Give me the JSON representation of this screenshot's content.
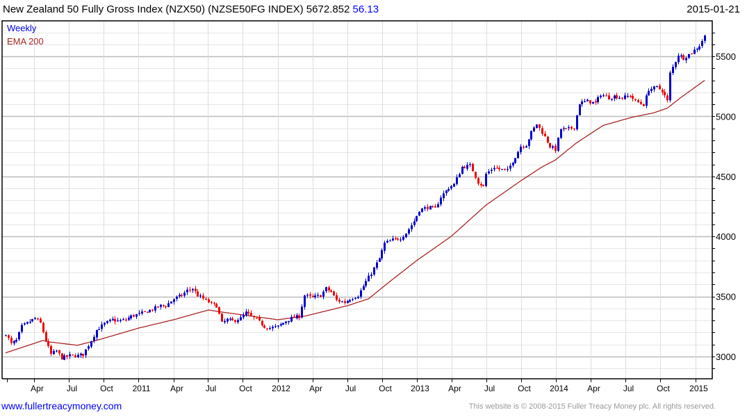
{
  "header": {
    "title": "New Zealand 50 Fully Gross Index (NZX50) (NZSE50FG INDEX) 5672.852",
    "change": "56.13",
    "date": "2015-01-21"
  },
  "footer": {
    "site": "www.fullertreacymoney.com",
    "copyright": "This website is © 2008-2015 Fuller Treacy Money plc. All rights reserved."
  },
  "chart_data": {
    "type": "candlestick",
    "title": "New Zealand 50 Fully Gross Index (NZX50) (NZSE50FG INDEX)",
    "legend": [
      {
        "label": "Weekly",
        "color": "#0000dd"
      },
      {
        "label": "EMA 200",
        "color": "#aa2222"
      }
    ],
    "legend_placement": "top-left",
    "up_color": "#0000cc",
    "down_color": "#ee0000",
    "ylim": [
      2814,
      5796
    ],
    "y_ticks": [
      3000,
      3500,
      4000,
      4500,
      5000,
      5500
    ],
    "y_minor_step": 100,
    "weeks_total": 263,
    "x_ticks": [
      {
        "label": "Apr",
        "week": 10.7
      },
      {
        "label": "Jul",
        "week": 23.7
      },
      {
        "label": "Oct",
        "week": 36.8
      },
      {
        "label": "2011",
        "week": 49.8
      },
      {
        "label": "Apr",
        "week": 62.9
      },
      {
        "label": "Jul",
        "week": 75.9
      },
      {
        "label": "Oct",
        "week": 88.9
      },
      {
        "label": "2012",
        "week": 102.0
      },
      {
        "label": "Apr",
        "week": 115.0
      },
      {
        "label": "Jul",
        "week": 128.1
      },
      {
        "label": "Oct",
        "week": 141.1
      },
      {
        "label": "2013",
        "week": 154.1
      },
      {
        "label": "Apr",
        "week": 167.2
      },
      {
        "label": "Jul",
        "week": 180.2
      },
      {
        "label": "Oct",
        "week": 193.3
      },
      {
        "label": "2014",
        "week": 206.3
      },
      {
        "label": "Apr",
        "week": 219.3
      },
      {
        "label": "Jul",
        "week": 232.4
      },
      {
        "label": "Oct",
        "week": 245.4
      },
      {
        "label": "2015",
        "week": 258.5
      }
    ],
    "weekly_close_waypoints": [
      [
        0,
        3191
      ],
      [
        2,
        3104
      ],
      [
        4,
        3133
      ],
      [
        6,
        3249
      ],
      [
        8,
        3277
      ],
      [
        11,
        3318
      ],
      [
        13,
        3277
      ],
      [
        15,
        3133
      ],
      [
        17,
        3017
      ],
      [
        19,
        3046
      ],
      [
        21,
        2988
      ],
      [
        24,
        3006
      ],
      [
        27,
        3006
      ],
      [
        29,
        3017
      ],
      [
        32,
        3133
      ],
      [
        34,
        3220
      ],
      [
        37,
        3272
      ],
      [
        40,
        3306
      ],
      [
        42,
        3295
      ],
      [
        45,
        3306
      ],
      [
        47,
        3335
      ],
      [
        50,
        3353
      ],
      [
        53,
        3376
      ],
      [
        55,
        3393
      ],
      [
        58,
        3422
      ],
      [
        60,
        3422
      ],
      [
        63,
        3480
      ],
      [
        66,
        3509
      ],
      [
        68,
        3549
      ],
      [
        70,
        3566
      ],
      [
        72,
        3509
      ],
      [
        75,
        3468
      ],
      [
        77,
        3439
      ],
      [
        79,
        3422
      ],
      [
        81,
        3277
      ],
      [
        83,
        3306
      ],
      [
        85,
        3295
      ],
      [
        88,
        3318
      ],
      [
        90,
        3364
      ],
      [
        92,
        3335
      ],
      [
        94,
        3306
      ],
      [
        97,
        3249
      ],
      [
        99,
        3237
      ],
      [
        102,
        3249
      ],
      [
        105,
        3295
      ],
      [
        107,
        3318
      ],
      [
        110,
        3335
      ],
      [
        112,
        3509
      ],
      [
        115,
        3491
      ],
      [
        118,
        3509
      ],
      [
        120,
        3566
      ],
      [
        122,
        3538
      ],
      [
        124,
        3468
      ],
      [
        127,
        3451
      ],
      [
        129,
        3480
      ],
      [
        132,
        3509
      ],
      [
        135,
        3624
      ],
      [
        137,
        3694
      ],
      [
        140,
        3815
      ],
      [
        142,
        3942
      ],
      [
        145,
        3971
      ],
      [
        148,
        3988
      ],
      [
        150,
        4029
      ],
      [
        153,
        4127
      ],
      [
        155,
        4220
      ],
      [
        158,
        4243
      ],
      [
        161,
        4231
      ],
      [
        163,
        4329
      ],
      [
        166,
        4405
      ],
      [
        168,
        4434
      ],
      [
        171,
        4578
      ],
      [
        174,
        4590
      ],
      [
        175,
        4549
      ],
      [
        177,
        4451
      ],
      [
        179,
        4416
      ],
      [
        180,
        4520
      ],
      [
        183,
        4578
      ],
      [
        185,
        4561
      ],
      [
        188,
        4549
      ],
      [
        191,
        4665
      ],
      [
        193,
        4751
      ],
      [
        195,
        4763
      ],
      [
        197,
        4867
      ],
      [
        199,
        4936
      ],
      [
        201,
        4867
      ],
      [
        204,
        4751
      ],
      [
        206,
        4723
      ],
      [
        208,
        4896
      ],
      [
        210,
        4890
      ],
      [
        213,
        4908
      ],
      [
        215,
        5110
      ],
      [
        218,
        5127
      ],
      [
        221,
        5110
      ],
      [
        223,
        5185
      ],
      [
        226,
        5156
      ],
      [
        228,
        5168
      ],
      [
        231,
        5156
      ],
      [
        234,
        5173
      ],
      [
        236,
        5127
      ],
      [
        239,
        5098
      ],
      [
        241,
        5225
      ],
      [
        244,
        5243
      ],
      [
        246,
        5214
      ],
      [
        248,
        5127
      ],
      [
        249,
        5358
      ],
      [
        252,
        5514
      ],
      [
        254,
        5486
      ],
      [
        257,
        5532
      ],
      [
        260,
        5590
      ],
      [
        262,
        5673
      ]
    ],
    "ema200_waypoints": [
      [
        0,
        3030
      ],
      [
        14,
        3133
      ],
      [
        16,
        3122
      ],
      [
        27,
        3093
      ],
      [
        34,
        3133
      ],
      [
        50,
        3237
      ],
      [
        63,
        3306
      ],
      [
        76,
        3387
      ],
      [
        81,
        3370
      ],
      [
        102,
        3306
      ],
      [
        112,
        3335
      ],
      [
        128,
        3422
      ],
      [
        136,
        3480
      ],
      [
        144,
        3624
      ],
      [
        154,
        3798
      ],
      [
        167,
        4000
      ],
      [
        180,
        4260
      ],
      [
        193,
        4462
      ],
      [
        201,
        4578
      ],
      [
        206,
        4636
      ],
      [
        214,
        4780
      ],
      [
        224,
        4925
      ],
      [
        235,
        4994
      ],
      [
        243,
        5030
      ],
      [
        248,
        5069
      ],
      [
        253,
        5156
      ],
      [
        262,
        5300
      ]
    ]
  }
}
